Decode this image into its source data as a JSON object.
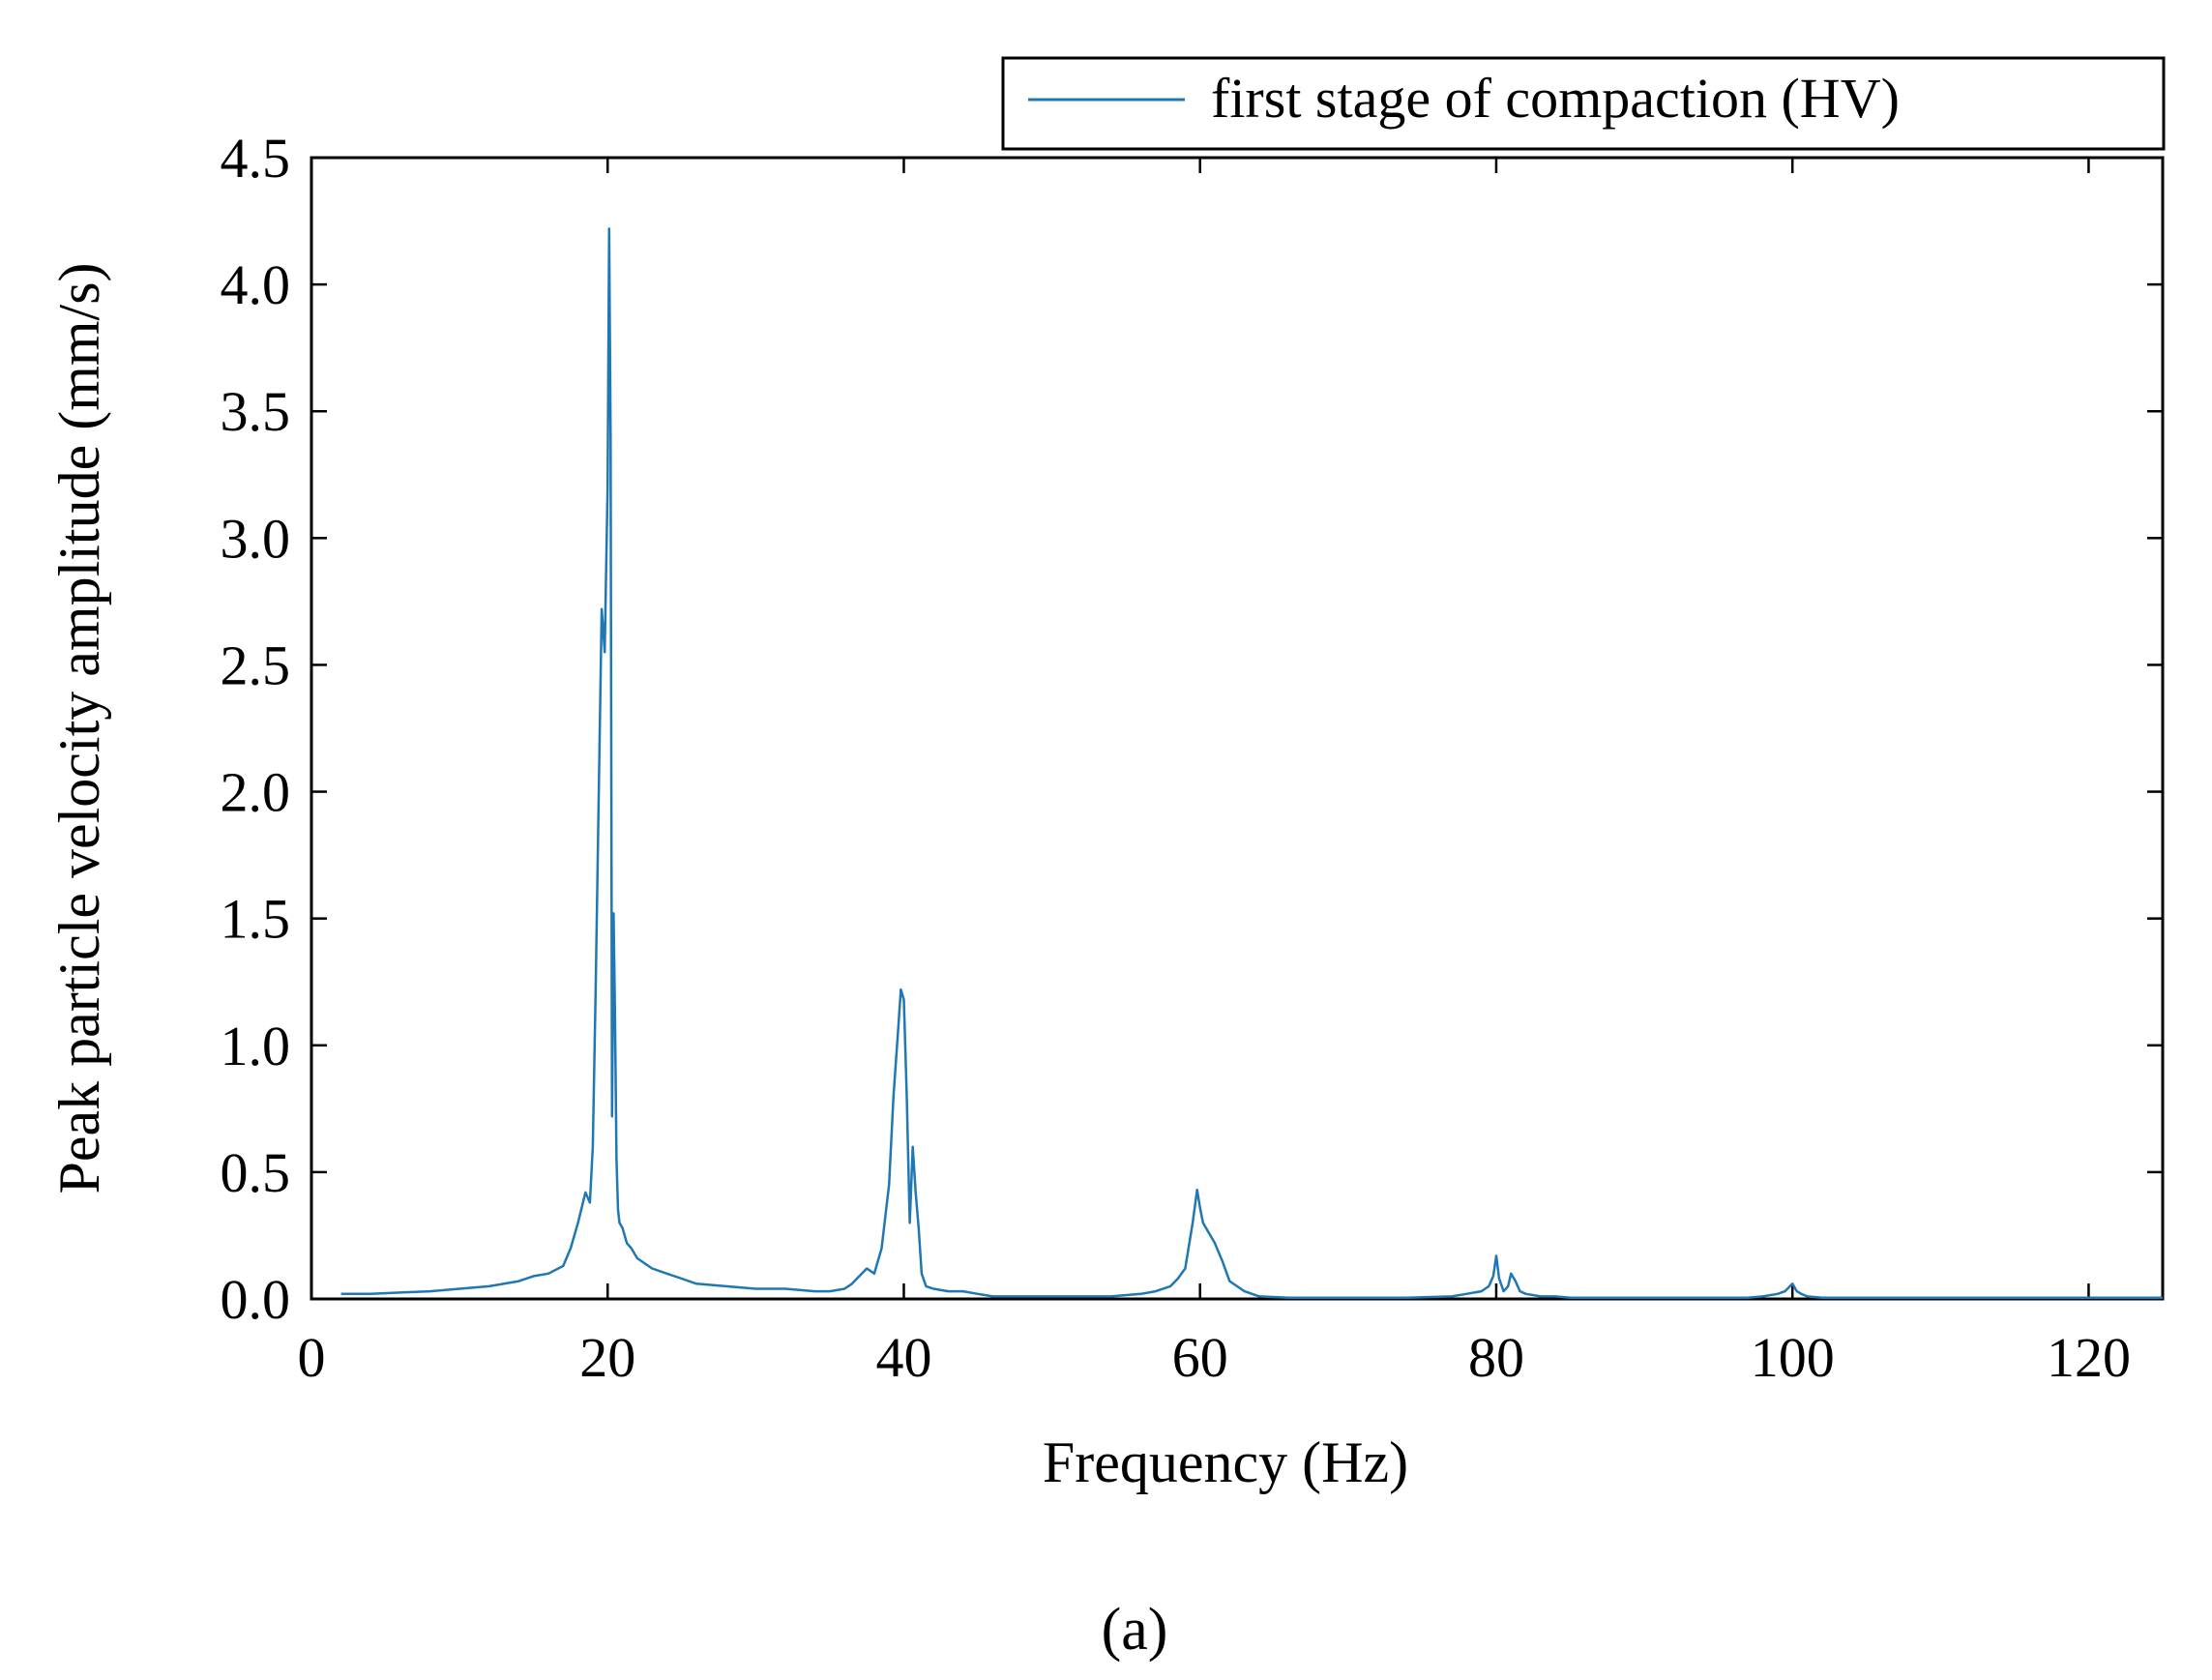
{
  "chart_data": {
    "type": "line",
    "title": "",
    "xlabel": "Frequency (Hz)",
    "ylabel": "Peak particle velocity amplitude (mm/s)",
    "xlim": [
      0,
      125
    ],
    "ylim": [
      0,
      4.5
    ],
    "x_ticks": [
      0,
      20,
      40,
      60,
      80,
      100,
      120
    ],
    "x_tick_labels": [
      "0",
      "20",
      "40",
      "60",
      "80",
      "100",
      "120"
    ],
    "y_ticks": [
      0,
      0.5,
      1,
      1.5,
      2,
      2.5,
      3,
      3.5,
      4,
      4.5
    ],
    "y_tick_labels": [
      "0.0",
      "0.5",
      "1.0",
      "1.5",
      "2.0",
      "2.5",
      "3.0",
      "3.5",
      "4.0",
      "4.5"
    ],
    "grid": false,
    "legend_position": "top-right, outside plot",
    "caption": "(a)",
    "series": [
      {
        "name": "first stage of compaction (HV)",
        "color": "#1f77b4",
        "x": [
          2,
          4,
          6,
          8,
          10,
          12,
          14,
          15,
          16,
          17,
          17.5,
          18,
          18.5,
          18.8,
          19,
          19.2,
          19.4,
          19.6,
          19.8,
          20,
          20.1,
          20.2,
          20.3,
          20.4,
          20.5,
          20.6,
          20.7,
          20.8,
          21,
          21.3,
          21.6,
          22,
          23,
          24,
          25,
          26,
          28,
          30,
          32,
          34,
          35,
          36,
          36.5,
          37,
          37.5,
          38,
          38.5,
          39,
          39.3,
          39.6,
          39.8,
          40,
          40.2,
          40.4,
          40.6,
          40.8,
          41,
          41.2,
          41.5,
          42,
          43,
          44,
          45,
          46,
          48,
          50,
          52,
          54,
          56,
          57,
          58,
          58.5,
          59,
          59.5,
          59.8,
          60,
          60.2,
          60.5,
          61,
          61.5,
          62,
          63,
          64,
          66,
          70,
          74,
          77,
          78,
          79,
          79.5,
          79.8,
          80,
          80.2,
          80.5,
          80.8,
          81,
          81.3,
          81.6,
          82,
          83,
          84,
          85,
          87,
          90,
          95,
          97,
          98,
          99,
          99.5,
          100,
          100.3,
          100.6,
          101,
          102,
          103,
          105,
          110,
          120,
          125
        ],
        "values": [
          0.02,
          0.02,
          0.025,
          0.03,
          0.04,
          0.05,
          0.07,
          0.09,
          0.1,
          0.13,
          0.2,
          0.3,
          0.42,
          0.38,
          0.6,
          1.25,
          2.0,
          2.72,
          2.55,
          3.2,
          4.22,
          3.4,
          0.72,
          1.52,
          1.1,
          0.55,
          0.35,
          0.3,
          0.28,
          0.22,
          0.2,
          0.16,
          0.12,
          0.1,
          0.08,
          0.06,
          0.05,
          0.04,
          0.04,
          0.03,
          0.03,
          0.04,
          0.06,
          0.09,
          0.12,
          0.1,
          0.2,
          0.45,
          0.8,
          1.05,
          1.22,
          1.18,
          0.8,
          0.3,
          0.6,
          0.42,
          0.28,
          0.1,
          0.05,
          0.04,
          0.03,
          0.03,
          0.02,
          0.01,
          0.01,
          0.01,
          0.01,
          0.01,
          0.02,
          0.03,
          0.05,
          0.08,
          0.12,
          0.3,
          0.43,
          0.36,
          0.3,
          0.27,
          0.22,
          0.15,
          0.07,
          0.03,
          0.01,
          0.005,
          0.005,
          0.005,
          0.01,
          0.02,
          0.03,
          0.05,
          0.09,
          0.17,
          0.08,
          0.03,
          0.05,
          0.1,
          0.07,
          0.03,
          0.02,
          0.01,
          0.01,
          0.005,
          0.005,
          0.005,
          0.005,
          0.005,
          0.01,
          0.02,
          0.03,
          0.06,
          0.03,
          0.02,
          0.01,
          0.005,
          0.005,
          0.005,
          0.005,
          0.005,
          0.005
        ]
      }
    ]
  }
}
